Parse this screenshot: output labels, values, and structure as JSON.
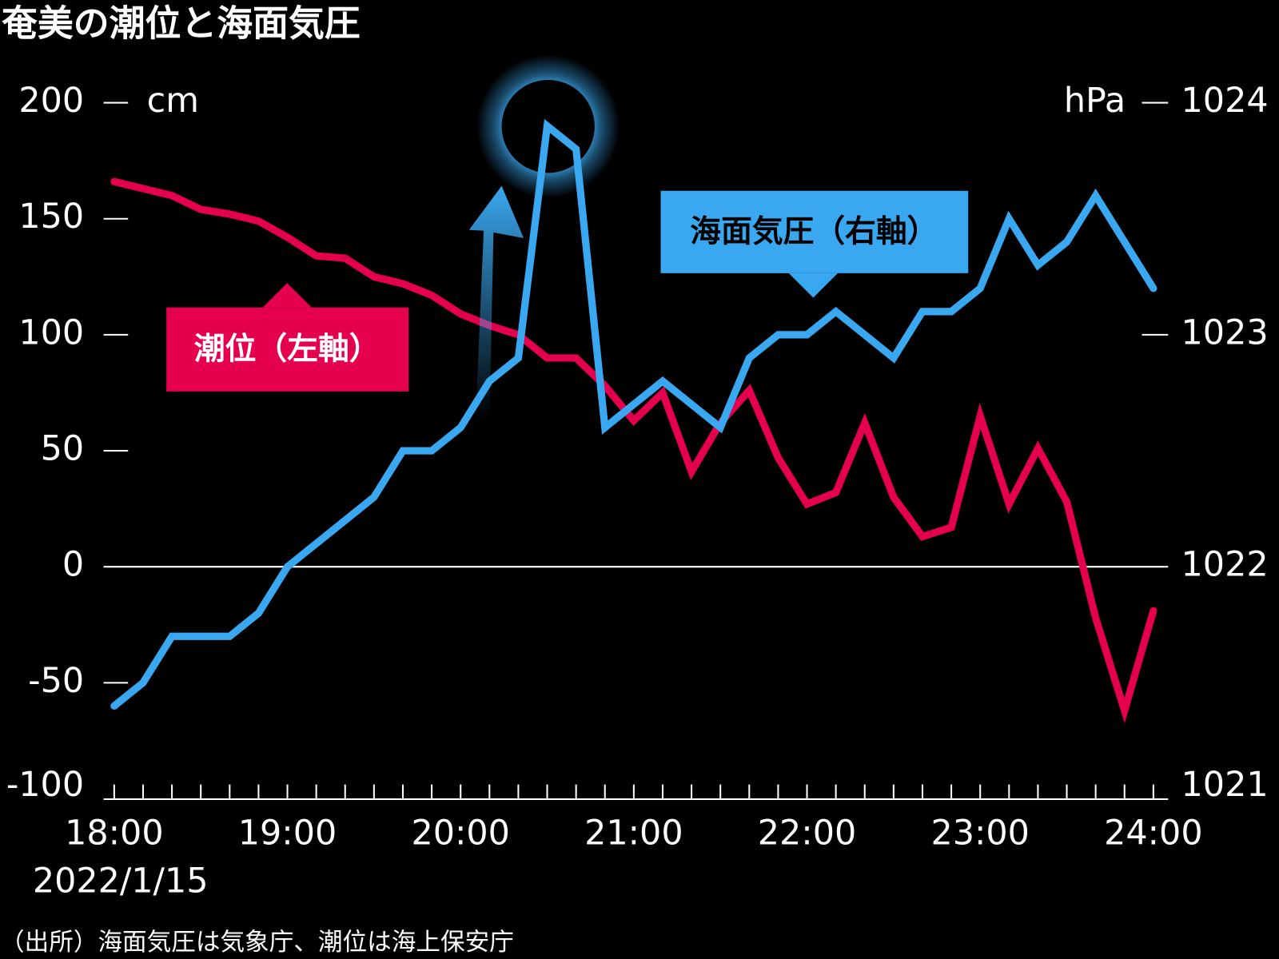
{
  "chart_data": {
    "type": "line",
    "title": "奄美の潮位と海面気圧",
    "source": "（出所）海面気圧は気象庁、潮位は海上保安庁",
    "x_sublabel": "2022/1/15",
    "y_unit": "cm",
    "y2_unit": "hPa",
    "categories": [
      "18:00",
      null,
      null,
      null,
      null,
      null,
      "19:00",
      null,
      null,
      null,
      null,
      null,
      "20:00",
      null,
      null,
      null,
      null,
      null,
      "21:00",
      null,
      null,
      null,
      null,
      null,
      "22:00",
      null,
      null,
      null,
      null,
      null,
      "23:00",
      null,
      null,
      null,
      null,
      null,
      "24:00"
    ],
    "ylim": [
      -100,
      200
    ],
    "yticks": [
      -100,
      -50,
      0,
      50,
      100,
      150,
      200
    ],
    "y2lim": [
      1021,
      1024
    ],
    "y2ticks": [
      1021,
      1022,
      1023,
      1024
    ],
    "zero_line": true,
    "series": [
      {
        "name": "潮位（左軸）",
        "color": "#e5004f",
        "values": [
          166,
          163,
          160,
          154,
          152,
          149,
          142,
          134,
          133,
          125,
          122,
          117,
          109,
          104,
          100,
          90,
          90,
          78,
          63,
          75,
          41,
          62,
          76,
          47,
          27,
          32,
          62,
          30,
          13,
          17,
          65,
          27,
          51,
          28,
          -22,
          -62,
          -19
        ]
      },
      {
        "name": "海面気圧（右軸）",
        "color": "#3aa8f0",
        "axis": "y2",
        "values": [
          1021.4,
          1021.5,
          1021.7,
          1021.7,
          1021.7,
          1021.8,
          1022.0,
          1022.1,
          1022.2,
          1022.3,
          1022.5,
          1022.5,
          1022.6,
          1022.8,
          1022.9,
          1023.9,
          1023.8,
          1022.6,
          1022.7,
          1022.8,
          1022.7,
          1022.6,
          1022.9,
          1023.0,
          1023.0,
          1023.1,
          1023.0,
          1022.9,
          1023.1,
          1023.1,
          1023.2,
          1023.5,
          1023.3,
          1023.4,
          1023.6,
          1023.4,
          1023.2
        ]
      }
    ]
  }
}
